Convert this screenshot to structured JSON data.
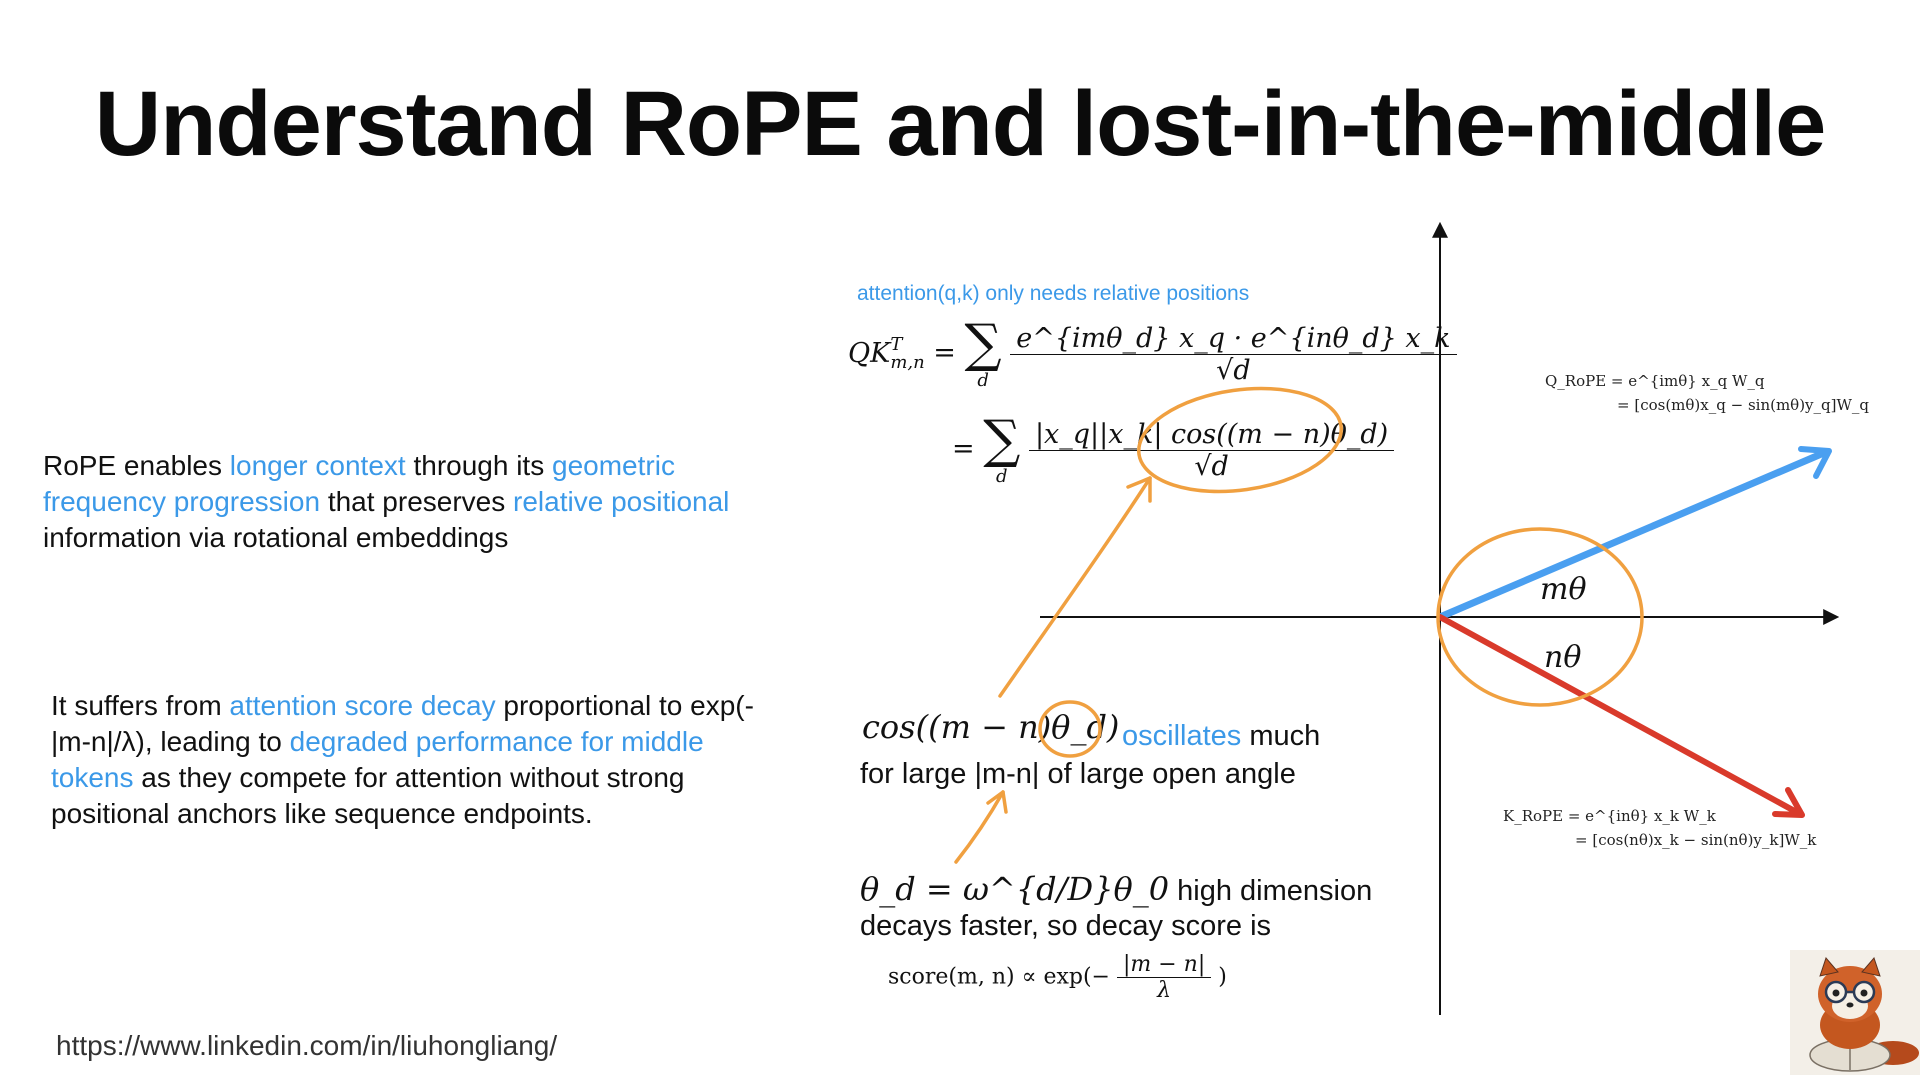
{
  "title": "Understand RoPE and lost-in-the-middle",
  "left": {
    "para1": [
      {
        "t": "RoPE enables ",
        "hl": false
      },
      {
        "t": "longer context",
        "hl": true
      },
      {
        "t": " through its ",
        "hl": false
      },
      {
        "t": "geometric frequency progression",
        "hl": true
      },
      {
        "t": " that preserves ",
        "hl": false
      },
      {
        "t": "relative positional",
        "hl": true
      },
      {
        "t": " information via rotational embeddings",
        "hl": false
      }
    ],
    "para2": [
      {
        "t": "It suffers from ",
        "hl": false
      },
      {
        "t": "attention score decay",
        "hl": true
      },
      {
        "t": " proportional to exp(-|m-n|/λ), leading to ",
        "hl": false
      },
      {
        "t": "degraded performance for middle tokens",
        "hl": true
      },
      {
        "t": " as they compete for attention without strong positional anchors like sequence endpoints.",
        "hl": false
      }
    ]
  },
  "formula": {
    "note": "attention(q,k) only needs relative positions",
    "lhs": "QK",
    "lhs_sup": "T",
    "lhs_sub": "m,n",
    "sum_sub": "d",
    "line1_num": "e^{imθ_d} x_q · e^{inθ_d} x_k",
    "line1_den": "√d",
    "line2_num": "|x_q||x_k| cos((m − n)θ_d)",
    "line2_den": "√d"
  },
  "mid": {
    "cos_expr": "cos((m − n)θ_d)",
    "oscillates": "oscillates",
    "much": " much",
    "line2": "for large  |m-n| of large open angle",
    "theta_expr": "θ_d = ω^{d/D}θ_0",
    "theta_tail": " high dimension",
    "decays_line": "decays faster, so decay score is",
    "score_lhs": "score(m, n) ∝ exp(−",
    "score_num": "|m − n|",
    "score_den": "λ",
    "score_rhs": ")"
  },
  "diagram": {
    "q_label_1": "Q_RoPE = e^{imθ} x_q W_q",
    "q_label_2": "= [cos(mθ)x_q − sin(mθ)y_q]W_q",
    "k_label_1": "K_RoPE = e^{inθ} x_k W_k",
    "k_label_2": "= [cos(nθ)x_k − sin(nθ)y_k]W_k",
    "m_theta": "mθ",
    "n_theta": "nθ",
    "colors": {
      "q": "#4a9ff0",
      "k": "#d93a2b",
      "annot": "#f0a040",
      "accent": "#3b99e8"
    }
  },
  "footer_url": "https://www.linkedin.com/in/liuhongliang/"
}
